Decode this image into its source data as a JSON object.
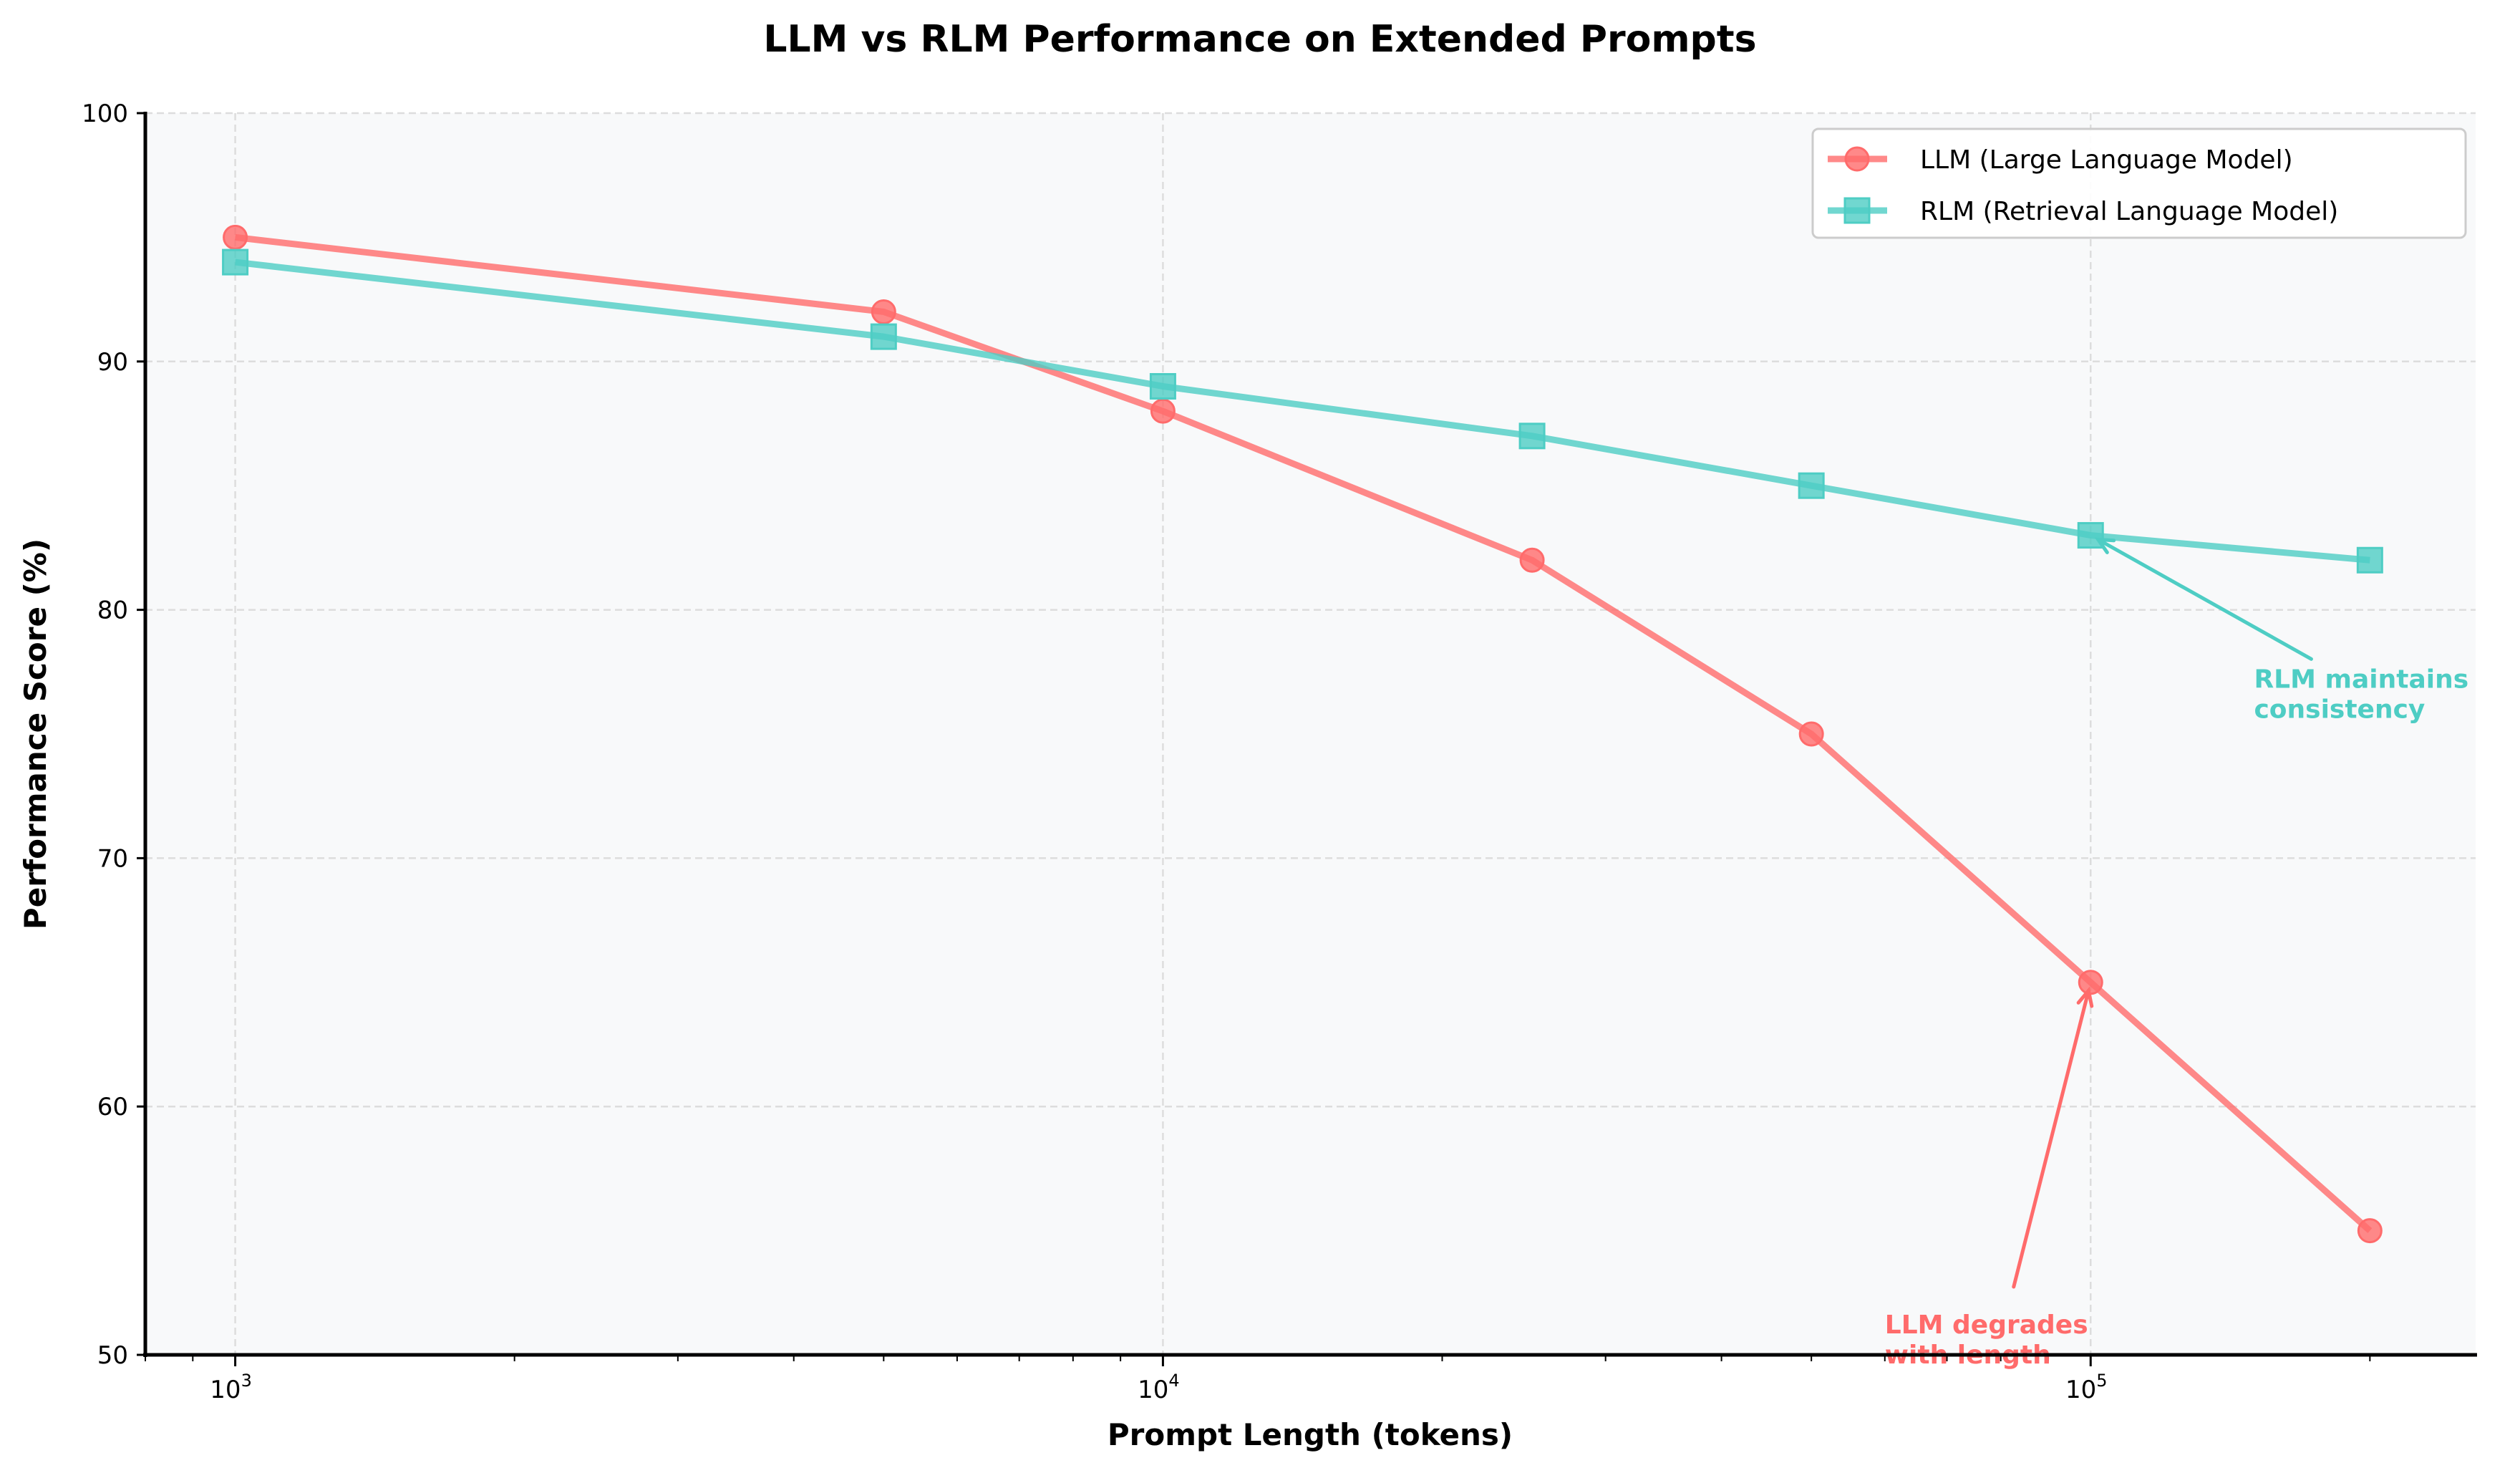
{
  "chart_data": {
    "type": "line",
    "title": "LLM vs RLM Performance on Extended Prompts",
    "xlabel": "Prompt Length (tokens)",
    "ylabel": "Performance Score (%)",
    "xscale": "log",
    "xlim": [
      800,
      260000
    ],
    "ylim": [
      50,
      100
    ],
    "x": [
      1000,
      5000,
      10000,
      25000,
      50000,
      100000,
      200000
    ],
    "x_ticks": [
      {
        "value": 1000,
        "base": "10",
        "exp": "3"
      },
      {
        "value": 10000,
        "base": "10",
        "exp": "4"
      },
      {
        "value": 100000,
        "base": "10",
        "exp": "5"
      }
    ],
    "y_ticks": [
      50,
      60,
      70,
      80,
      90,
      100
    ],
    "grid": true,
    "legend_position": "top-right",
    "series": [
      {
        "name": "LLM (Large Language Model)",
        "marker": "circle",
        "color": "#ff6b6b",
        "values": [
          95,
          92,
          88,
          82,
          75,
          65,
          55
        ]
      },
      {
        "name": "RLM (Retrieval Language Model)",
        "marker": "square",
        "color": "#4ecdc4",
        "values": [
          94,
          91,
          89,
          87,
          85,
          83,
          82
        ]
      }
    ],
    "annotations": [
      {
        "text_lines": [
          "RLM maintains",
          "consistency"
        ],
        "target_x": 100000,
        "target_y": 83,
        "text_x": 150000,
        "text_y": 76,
        "color": "#4ecdc4"
      },
      {
        "text_lines": [
          "LLM degrades",
          "with length"
        ],
        "target_x": 100000,
        "target_y": 65,
        "text_x": 60000,
        "text_y": 50,
        "color": "#ff6b6b"
      }
    ]
  }
}
